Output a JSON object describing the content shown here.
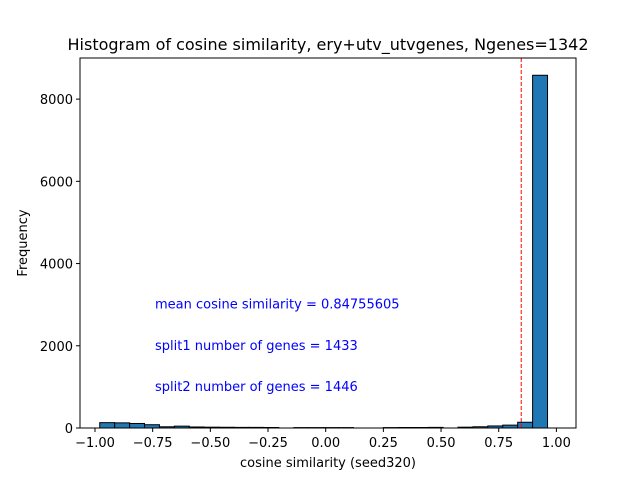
{
  "chart_data": {
    "type": "bar",
    "title": "Histogram of cosine similarity, ery+utv_utvgenes, Ngenes=1342",
    "xlabel": "cosine similarity (seed320)",
    "ylabel": "Frequency",
    "xlim": [
      -1.065,
      1.085
    ],
    "ylim": [
      0,
      9000
    ],
    "xticks": [
      -1.0,
      -0.75,
      -0.5,
      -0.25,
      0.0,
      0.25,
      0.5,
      0.75,
      1.0
    ],
    "xtick_labels": [
      "−1.00",
      "−0.75",
      "−0.50",
      "−0.25",
      "0.00",
      "0.25",
      "0.50",
      "0.75",
      "1.00"
    ],
    "yticks": [
      0,
      2000,
      4000,
      6000,
      8000
    ],
    "ytick_labels": [
      "0",
      "2000",
      "4000",
      "6000",
      "8000"
    ],
    "bin_edges": [
      -0.9794,
      -0.9147,
      -0.85,
      -0.7853,
      -0.7206,
      -0.6559,
      -0.5912,
      -0.5265,
      -0.4618,
      -0.3971,
      -0.3324,
      -0.2677,
      -0.203,
      -0.1383,
      -0.0736,
      -0.0089,
      0.0558,
      0.1205,
      0.1852,
      0.2499,
      0.3146,
      0.3793,
      0.444,
      0.5087,
      0.5734,
      0.6381,
      0.7028,
      0.7675,
      0.8322,
      0.8969,
      0.9616
    ],
    "counts": [
      130,
      125,
      110,
      80,
      30,
      45,
      25,
      20,
      18,
      15,
      15,
      12,
      0,
      10,
      10,
      10,
      10,
      0,
      0,
      10,
      12,
      12,
      15,
      0,
      20,
      30,
      50,
      70,
      140,
      8580
    ],
    "bar_color": "#1f77b4",
    "bar_edge_color": "#000000",
    "mean_line": {
      "x": 0.84755605,
      "color": "#ff0000",
      "style": "dashed"
    },
    "annotations": [
      {
        "text": "mean cosine similarity = 0.84755605",
        "x": -0.74,
        "y": 3000,
        "color": "#0000ff"
      },
      {
        "text": "split1 number of genes = 1433",
        "x": -0.74,
        "y": 2000,
        "color": "#0000ff"
      },
      {
        "text": "split2 number of genes = 1446",
        "x": -0.74,
        "y": 1000,
        "color": "#0000ff"
      }
    ],
    "grid": false,
    "legend": "none"
  }
}
